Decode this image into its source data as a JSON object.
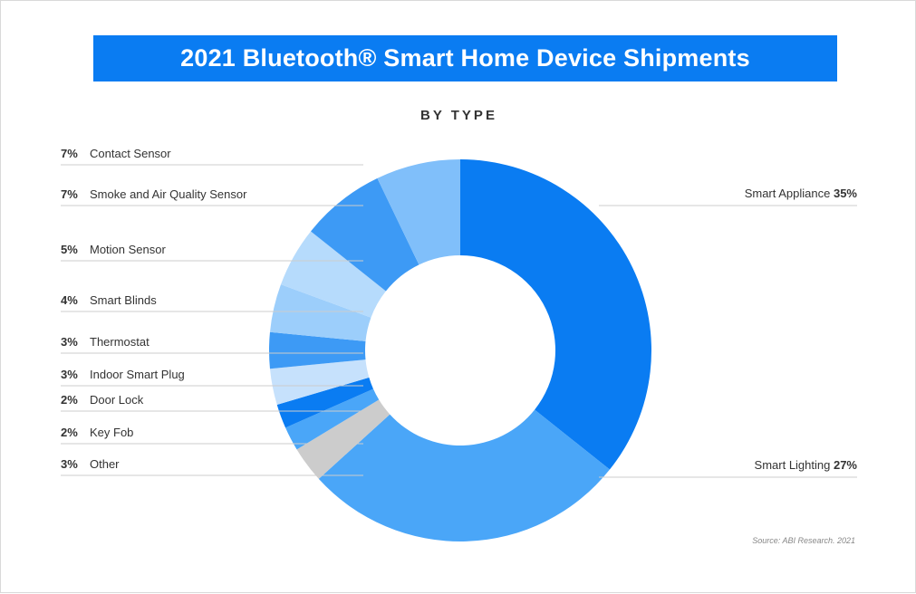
{
  "title": "2021 Bluetooth® Smart Home Device Shipments",
  "source": "Source: ABI Research. 2021",
  "colors": {
    "title_bg": "#0a7cf2",
    "leader_line": "#cccccc"
  },
  "chart_data": {
    "type": "pie",
    "donut": true,
    "subtitle": "BY TYPE",
    "slices": [
      {
        "label": "Smart Appliance",
        "pct": "35%",
        "value": 35,
        "color": "#0a7cf2",
        "side": "right"
      },
      {
        "label": "Smart Lighting",
        "pct": "27%",
        "value": 27,
        "color": "#4aa6f8",
        "side": "right"
      },
      {
        "label": "Other",
        "pct": "3%",
        "value": 3,
        "color": "#cccccc",
        "side": "left"
      },
      {
        "label": "Key Fob",
        "pct": "2%",
        "value": 2,
        "color": "#4aa6f8",
        "side": "left"
      },
      {
        "label": "Door Lock",
        "pct": "2%",
        "value": 2,
        "color": "#0a7cf2",
        "side": "left"
      },
      {
        "label": "Indoor Smart Plug",
        "pct": "3%",
        "value": 3,
        "color": "#c6e1fc",
        "side": "left"
      },
      {
        "label": "Thermostat",
        "pct": "3%",
        "value": 3,
        "color": "#3d9af5",
        "side": "left"
      },
      {
        "label": "Smart Blinds",
        "pct": "4%",
        "value": 4,
        "color": "#9ccefb",
        "side": "left"
      },
      {
        "label": "Motion Sensor",
        "pct": "5%",
        "value": 5,
        "color": "#b6dbfc",
        "side": "left"
      },
      {
        "label": "Smoke and Air Quality Sensor",
        "pct": "7%",
        "value": 7,
        "color": "#3d9af5",
        "side": "left"
      },
      {
        "label": "Contact Sensor",
        "pct": "7%",
        "value": 7,
        "color": "#80bffa",
        "side": "left"
      }
    ]
  }
}
